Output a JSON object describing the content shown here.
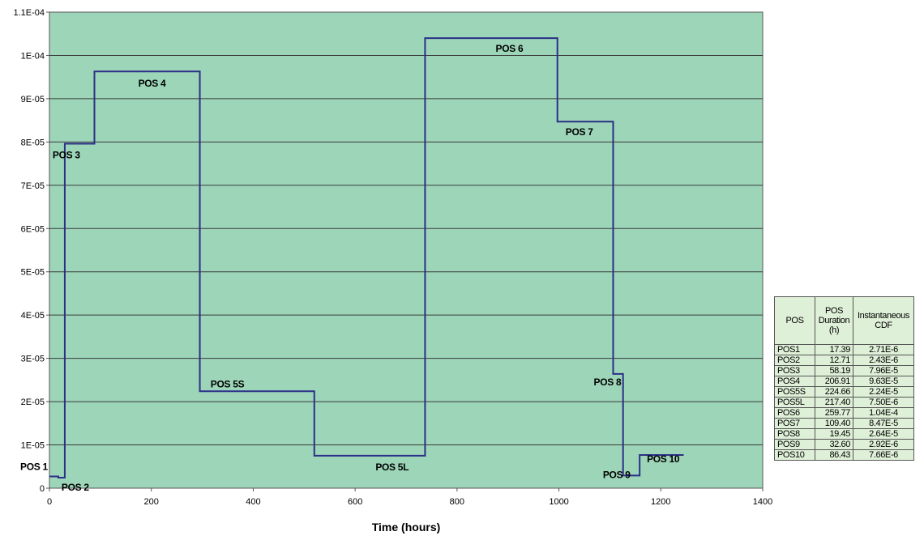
{
  "chart_data": {
    "type": "line",
    "step": true,
    "x": [
      0,
      17.39,
      30.1,
      88.29,
      295.2,
      519.86,
      737.26,
      997.03,
      1106.43,
      1125.88,
      1158.48,
      1244.91
    ],
    "y": [
      2.71e-06,
      2.43e-06,
      7.96e-05,
      9.63e-05,
      2.24e-05,
      7.5e-06,
      0.000104,
      8.47e-05,
      2.64e-05,
      2.92e-06,
      7.66e-06,
      7.66e-06
    ],
    "xlabel": "Time (hours)",
    "ylabel": "",
    "xlim": [
      0,
      1400
    ],
    "ylim": [
      0,
      0.00011
    ],
    "x_ticks": [
      "0",
      "200",
      "400",
      "600",
      "800",
      "1000",
      "1200",
      "1400"
    ],
    "y_ticks": [
      "0",
      "1E-05",
      "2E-05",
      "3E-05",
      "4E-05",
      "5E-05",
      "6E-05",
      "7E-05",
      "8E-05",
      "9E-05",
      "1E-04",
      "1.1E-04"
    ],
    "plot_background": "#9dd5b9",
    "line_color": "#2b2f87",
    "grid": "horizontal",
    "annotations": [
      "POS 1",
      "POS 2",
      "POS 3",
      "POS 4",
      "POS 5S",
      "POS 5L",
      "POS 6",
      "POS 7",
      "POS 8",
      "POS 9",
      "POS 10"
    ]
  },
  "table": {
    "headers": [
      "POS",
      "POS Duration (h)",
      "Instantaneous CDF"
    ],
    "rows": [
      [
        "POS1",
        "17.39",
        "2.71E-6"
      ],
      [
        "POS2",
        "12.71",
        "2.43E-6"
      ],
      [
        "POS3",
        "58.19",
        "7.96E-5"
      ],
      [
        "POS4",
        "206.91",
        "9.63E-5"
      ],
      [
        "POS5S",
        "224.66",
        "2.24E-5"
      ],
      [
        "POS5L",
        "217.40",
        "7.50E-6"
      ],
      [
        "POS6",
        "259.77",
        "1.04E-4"
      ],
      [
        "POS7",
        "109.40",
        "8.47E-5"
      ],
      [
        "POS8",
        "19.45",
        "2.64E-5"
      ],
      [
        "POS9",
        "32.60",
        "2.92E-6"
      ],
      [
        "POS10",
        "86.43",
        "7.66E-6"
      ]
    ]
  }
}
